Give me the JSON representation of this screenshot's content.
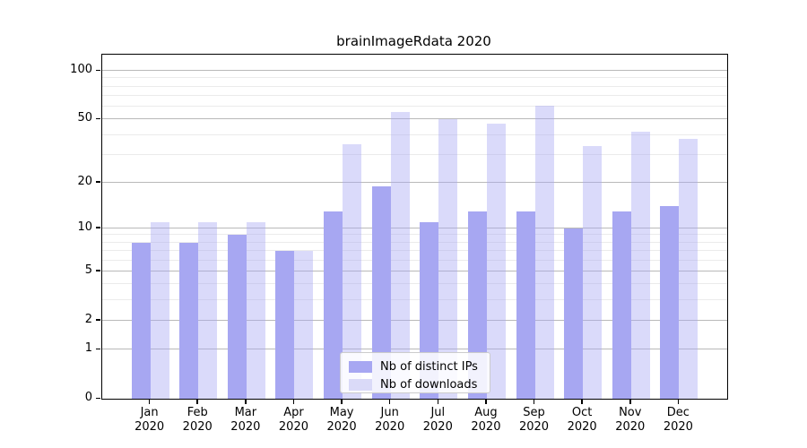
{
  "title": "brainImageRdata 2020",
  "chart_data": {
    "type": "bar",
    "title": "brainImageRdata 2020",
    "categories": [
      "Jan",
      "Feb",
      "Mar",
      "Apr",
      "May",
      "Jun",
      "Jul",
      "Aug",
      "Sep",
      "Oct",
      "Nov",
      "Dec"
    ],
    "category_year": "2020",
    "series": [
      {
        "name": "Nb of distinct IPs",
        "color": "rgba(167,167,242,1)",
        "swatch": "#a7a7f2",
        "values": [
          8,
          8,
          9,
          7,
          13,
          19,
          11,
          13,
          13,
          10,
          13,
          14
        ]
      },
      {
        "name": "Nb of downloads",
        "color": "rgba(167,167,242,0.42)",
        "swatch": "#dadaf8",
        "values": [
          11,
          11,
          11,
          7,
          35,
          56,
          50,
          47,
          61,
          34,
          42,
          38
        ]
      }
    ],
    "yscale": "log1p",
    "y_major_ticks": [
      0,
      1,
      2,
      5,
      10,
      20,
      50,
      100
    ],
    "y_minor_gridlines": [
      3,
      4,
      6,
      7,
      8,
      9,
      30,
      40,
      60,
      70,
      80,
      90
    ],
    "ylim": [
      0,
      126
    ],
    "xlabel": "",
    "ylabel": "",
    "grid": true,
    "legend_position": "lower center"
  },
  "legend": {
    "items": [
      {
        "label": "Nb of distinct IPs"
      },
      {
        "label": "Nb of downloads"
      }
    ]
  }
}
